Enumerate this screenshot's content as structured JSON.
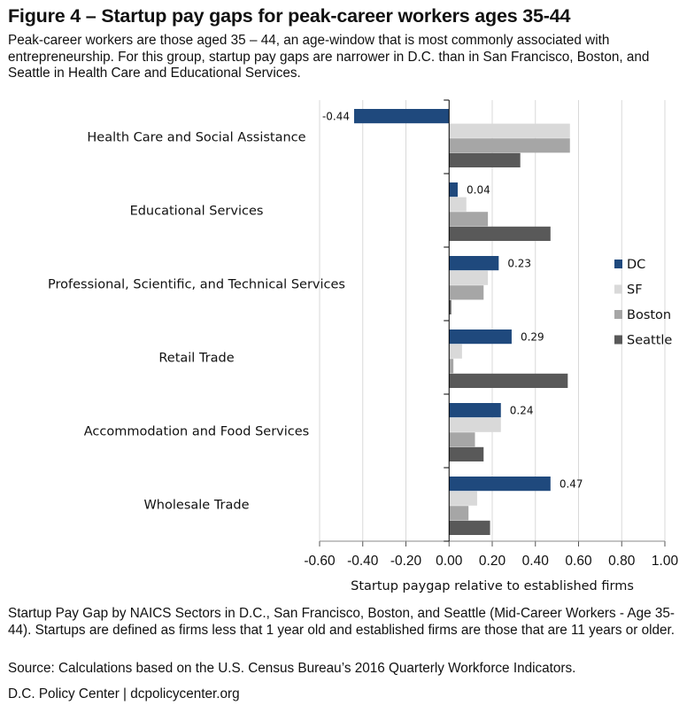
{
  "header": {
    "title": "Figure 4 – Startup pay gaps for peak-career workers ages 35-44",
    "subtitle": "Peak-career workers are those aged 35 – 44, an age-window that is most commonly associated with entrepreneurship. For this group, startup pay gaps are narrower in D.C. than in San Francisco, Boston, and Seattle in Health Care and Educational Services."
  },
  "chart_data": {
    "type": "bar",
    "orientation": "horizontal",
    "categories": [
      "Health Care and Social Assistance",
      "Educational Services",
      "Professional, Scientific, and Technical Services",
      "Retail Trade",
      "Accommodation and Food Services",
      "Wholesale Trade"
    ],
    "series": [
      {
        "name": "DC",
        "color": "#1f497d",
        "values": [
          -0.44,
          0.04,
          0.23,
          0.29,
          0.24,
          0.47
        ],
        "labels": [
          "-0.44",
          "0.04",
          "0.23",
          "0.29",
          "0.24",
          "0.47"
        ]
      },
      {
        "name": "SF",
        "color": "#d9d9d9",
        "values": [
          0.56,
          0.08,
          0.18,
          0.06,
          0.24,
          0.13
        ]
      },
      {
        "name": "Boston",
        "color": "#a6a6a6",
        "values": [
          0.56,
          0.18,
          0.16,
          0.02,
          0.12,
          0.09
        ]
      },
      {
        "name": "Seattle",
        "color": "#595959",
        "values": [
          0.33,
          0.47,
          0.01,
          0.55,
          0.16,
          0.19
        ]
      }
    ],
    "xlabel": "Startup paygap relative to established firms",
    "xlim": [
      -0.6,
      1.0
    ],
    "xticks": [
      "-0.60",
      "-0.40",
      "-0.20",
      "0.00",
      "0.20",
      "0.40",
      "0.60",
      "0.80",
      "1.00"
    ],
    "grid": true,
    "legend_position": "right"
  },
  "footer": {
    "note": "Startup Pay Gap by NAICS Sectors in D.C., San Francisco, Boston, and Seattle (Mid-Career Workers - Age 35-44). Startups are defined as firms less that 1 year old and established firms are those that are 11 years or older.",
    "source": "Source: Calculations based on the U.S. Census Bureau’s 2016 Quarterly Workforce Indicators.",
    "credit": "D.C. Policy Center  |  dcpolicycenter.org"
  }
}
